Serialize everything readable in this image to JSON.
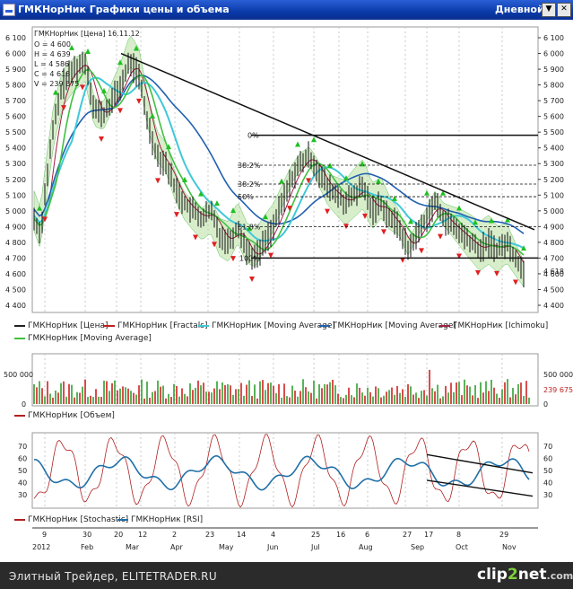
{
  "window": {
    "title": "ГМКНорНик Графики цены и объема",
    "mode": "Дневной",
    "controls": [
      "▼",
      "✕"
    ]
  },
  "price_panel": {
    "info": {
      "header": "ГМКНорНик [Цена] 16.11.12",
      "lines": [
        "O = 4 600",
        "H = 4 639",
        "L = 4 586",
        "C = 4 618",
        "V = 239 675"
      ]
    },
    "axis_right": [
      "6 100",
      "6 000",
      "5 900",
      "5 800",
      "5 700",
      "5 600",
      "5 500",
      "5 400",
      "5 300",
      "5 200",
      "5 100",
      "5 000",
      "4 900",
      "4 800",
      "4 700",
      "4 600",
      "4 500",
      "4 400"
    ],
    "axis_left": [
      "6 100",
      "6 000",
      "5 900",
      "5 800",
      "5 700",
      "5 600",
      "5 500",
      "5 400",
      "5 300",
      "5 200",
      "5 100",
      "5 000",
      "4 900",
      "4 800",
      "4 700",
      "4 600",
      "4 500",
      "4 400"
    ],
    "last_price_tag": "4 618",
    "fib_levels": [
      {
        "label": "0%",
        "value": 5480
      },
      {
        "label": "38.2%",
        "value": 5290
      },
      {
        "label": "38.2%",
        "value": 5170
      },
      {
        "label": "50%",
        "value": 5090
      },
      {
        "label": "61.8%",
        "value": 4900
      },
      {
        "label": "100%",
        "value": 4700
      }
    ],
    "legend": [
      {
        "label": "ГМКНорНик [Цена]",
        "color": "#202020"
      },
      {
        "label": "ГМКНорНик [Fractals]",
        "color": "#c02020"
      },
      {
        "label": "ГМКНорНик [Moving Average]",
        "color": "#40c8d8"
      },
      {
        "label": "ГМКНорНик [Moving Average]",
        "color": "#2060b0"
      },
      {
        "label": "ГМКНорНик [Ichimoku]",
        "color": "#a02040"
      },
      {
        "label": "ГМКНорНик [Moving Average]",
        "color": "#40c040"
      }
    ]
  },
  "volume_panel": {
    "axis_right": [
      "500 000",
      "0"
    ],
    "axis_left": [
      "500 000",
      "0"
    ],
    "last_volume_tag": "239 675",
    "legend": [
      {
        "label": "ГМКНорНик [Объем]",
        "color": "#b02020"
      }
    ]
  },
  "oscillator_panel": {
    "axis_right": [
      "70",
      "60",
      "50",
      "40",
      "30"
    ],
    "axis_left": [
      "70",
      "60",
      "50",
      "40",
      "30"
    ],
    "legend": [
      {
        "label": "ГМКНорНик [Stochastic]",
        "color": "#b02020"
      },
      {
        "label": "ГМКНорНик [RSI]",
        "color": "#2070a8"
      }
    ]
  },
  "date_axis": {
    "days": [
      "9",
      "30",
      "20",
      "12",
      "2",
      "23",
      "14",
      "4",
      "25",
      "16",
      "6",
      "27",
      "17",
      "8",
      "29"
    ],
    "months": [
      "2012",
      "Feb",
      "Mar",
      "Apr",
      "May",
      "Jun",
      "Jul",
      "Aug",
      "Sep",
      "Oct",
      "Nov"
    ]
  },
  "footer": {
    "text": "Элитный Трейдер, ELITETRADER.RU",
    "logo_main": "clip",
    "logo_two": "2",
    "logo_tail": "net",
    "logo_domain": ".com"
  }
}
